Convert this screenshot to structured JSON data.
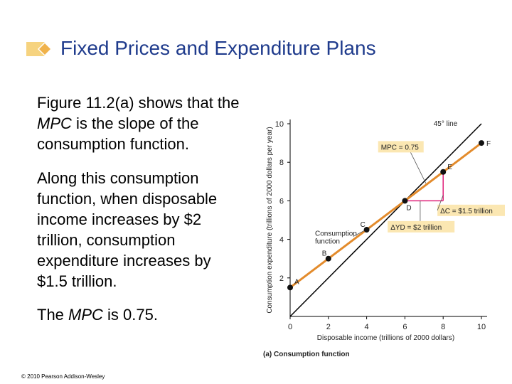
{
  "slide": {
    "title": "Fixed Prices and Expenditure Plans",
    "paragraph1_pre": "Figure 11.2(a) shows that the ",
    "paragraph1_em": "MPC",
    "paragraph1_post": " is the slope of the consumption function.",
    "paragraph2": "Along this consumption function, when disposable income increases by $2 trillion, consumption expenditure increases by $1.5 trillion.",
    "paragraph3_pre": "The ",
    "paragraph3_em": "MPC",
    "paragraph3_post": " is 0.75.",
    "footer": "© 2010 Pearson Addison-Wesley",
    "colors": {
      "title": "#1f3b8c",
      "consumption_line": "#e38b2c",
      "annotation": "#e0207a",
      "label_box": "#fbe7b2"
    }
  },
  "chart_data": {
    "type": "line",
    "xlabel": "Disposable income (trillions of 2000 dollars)",
    "ylabel": "Consumption expenditure (trillions of 2000 dollars per year)",
    "xlim": [
      0,
      10
    ],
    "ylim": [
      0,
      10
    ],
    "xticks": [
      0,
      2,
      4,
      6,
      8,
      10
    ],
    "yticks": [
      2,
      4,
      6,
      8,
      10
    ],
    "caption_bold": "(a) Consumption function",
    "series": [
      {
        "name": "45° line",
        "x": [
          0,
          10
        ],
        "y": [
          0,
          10
        ]
      },
      {
        "name": "Consumption function",
        "x": [
          0,
          10
        ],
        "y": [
          1.5,
          9
        ]
      }
    ],
    "points": [
      {
        "label": "A",
        "x": 0,
        "y": 1.5
      },
      {
        "label": "B",
        "x": 2,
        "y": 3
      },
      {
        "label": "C",
        "x": 4,
        "y": 4.5
      },
      {
        "label": "D",
        "x": 6,
        "y": 6
      },
      {
        "label": "E",
        "x": 8,
        "y": 7.5
      },
      {
        "label": "F",
        "x": 10,
        "y": 9
      }
    ],
    "annotations": {
      "mpc": "MPC = 0.75",
      "delta_c": "ΔC = $1.5 trillion",
      "delta_yd": "ΔYD = $2 trillion"
    }
  }
}
